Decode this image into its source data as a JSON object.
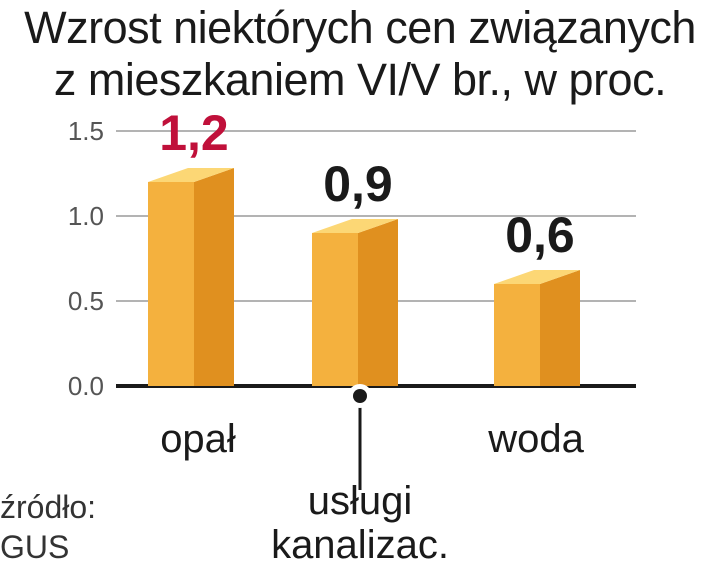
{
  "chart_data": {
    "type": "bar",
    "title_lines": [
      "Wzrost niektórych cen związanych",
      "z mieszkaniem VI/V br., w proc."
    ],
    "categories": [
      "opał",
      "usługi kanalizac.",
      "woda"
    ],
    "category_label_lines": [
      [
        "opał"
      ],
      [
        "usługi",
        "kanalizac."
      ],
      [
        "woda"
      ]
    ],
    "values": [
      1.2,
      0.9,
      0.6
    ],
    "value_labels": [
      "1,2",
      "0,9",
      "0,6"
    ],
    "yticks": [
      "0.0",
      "0.5",
      "1.0",
      "1.5"
    ],
    "ytick_values": [
      0,
      0.5,
      1.0,
      1.5
    ],
    "ylim": [
      0,
      1.5
    ],
    "grid": true,
    "source_lines": [
      "źródło:",
      "GUS"
    ],
    "colors": {
      "bar_front": "#f4b13e",
      "bar_side": "#e0901f",
      "bar_top": "#fcd775",
      "highlight_label": "#c0103a",
      "label": "#1a1a1a",
      "grid": "#9a9a9a",
      "axis": "#1a1a1a"
    },
    "highlight_index": 0
  }
}
